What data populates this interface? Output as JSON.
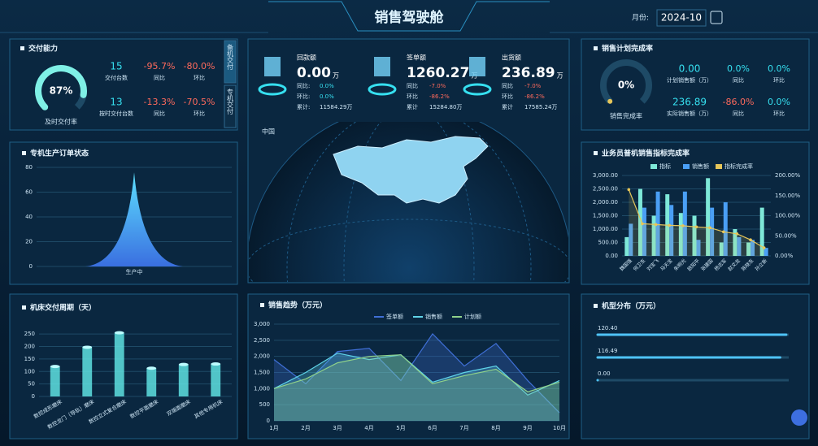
{
  "header": {
    "title": "销售驾驶舱",
    "month_label": "月份:",
    "month": "2024-10"
  },
  "delivery": {
    "title": "交付能力",
    "tabs": [
      "备机交付",
      "专机交付"
    ],
    "gauge": {
      "value": 87,
      "label": "87%",
      "lim": [
        0,
        100
      ]
    },
    "gauge_caption": "及时交付率",
    "rows": [
      {
        "value": "15",
        "label": "交付台数",
        "yoy": "-95.7%",
        "yoy_label": "同比",
        "mom": "-80.0%",
        "mom_label": "环比"
      },
      {
        "value": "13",
        "label": "按时交付台数",
        "yoy": "-13.3%",
        "yoy_label": "同比",
        "mom": "-70.5%",
        "mom_label": "环比"
      }
    ]
  },
  "kpis": {
    "map_label": "中国",
    "items": [
      {
        "name": "回款额",
        "value": "0.00",
        "unit": "万",
        "yoy_label": "同比:",
        "yoy": "0.0%",
        "mom_label": "环比:",
        "mom": "0.0%",
        "total_label": "累计:",
        "total": "11584.29万"
      },
      {
        "name": "签单额",
        "value": "1260.27",
        "unit": "万",
        "yoy_label": "同比",
        "yoy": "-7.0%",
        "mom_label": "环比",
        "mom": "-86.2%",
        "total_label": "累计",
        "total": "15284.80万"
      },
      {
        "name": "出货额",
        "value": "236.89",
        "unit": "万",
        "yoy_label": "同比",
        "yoy": "-7.0%",
        "mom_label": "环比",
        "mom": "-86.2%",
        "total_label": "累计",
        "total": "17585.24万"
      }
    ]
  },
  "plan": {
    "title": "销售计划完成率",
    "gauge": {
      "value": 0,
      "label": "0%",
      "lim": [
        0,
        100
      ]
    },
    "gauge_caption": "销售完成率",
    "rows": [
      {
        "value": "0.00",
        "label": "计划销售额（万）",
        "yoy": "0.0%",
        "yoy_label": "同比",
        "mom": "0.0%",
        "mom_label": "环比"
      },
      {
        "value": "236.89",
        "label": "实际销售额（万）",
        "yoy": "-86.0%",
        "yoy_label": "同比",
        "mom": "0.0%",
        "mom_label": "环比"
      }
    ]
  },
  "chart_data": [
    {
      "type": "pictorial-bar",
      "title": "专机生产订单状态",
      "categories": [
        "生产中"
      ],
      "values": [
        76
      ],
      "ylim": [
        0,
        80
      ],
      "yticks": [
        0,
        20,
        40,
        60,
        80
      ],
      "color": "#4fb3f0",
      "grid": true
    },
    {
      "type": "bar-line",
      "title": "业务员普机销售指标完成率",
      "categories": [
        "魏国强",
        "何卫东",
        "刘宝飞",
        "马天宝",
        "朱明光",
        "欧阳平",
        "张建国",
        "杨志军",
        "赵文龙",
        "陈晓东",
        "孙立新"
      ],
      "series": [
        {
          "name": "指标",
          "color": "#7ee8d8",
          "values": [
            700,
            2500,
            1500,
            2300,
            1600,
            1500,
            2900,
            500,
            1000,
            500,
            1800
          ]
        },
        {
          "name": "销售额",
          "color": "#4a9ff5",
          "values": [
            1200,
            1800,
            2400,
            1900,
            2400,
            600,
            1800,
            2000,
            700,
            600,
            300
          ]
        },
        {
          "name": "指标完成率",
          "color": "#e6c65a",
          "axis": "y2",
          "values": [
            165,
            80,
            78,
            76,
            75,
            72,
            70,
            60,
            55,
            40,
            20
          ]
        }
      ],
      "ylim": [
        0,
        3000
      ],
      "yticks": [
        {
          "value": 0,
          "label": "0.00"
        },
        {
          "value": 500,
          "label": "500.00"
        },
        {
          "value": 1000,
          "label": "1,000.00"
        },
        {
          "value": 1500,
          "label": "1,500.00"
        },
        {
          "value": 2000,
          "label": "2,000.00"
        },
        {
          "value": 2500,
          "label": "2,500.00"
        },
        {
          "value": 3000,
          "label": "3,000.00"
        }
      ],
      "y2lim": [
        0,
        200
      ],
      "y2ticks": [
        {
          "value": 0,
          "label": "0.00%"
        },
        {
          "value": 50,
          "label": "50.00%"
        },
        {
          "value": 100,
          "label": "100.00%"
        },
        {
          "value": 150,
          "label": "150.00%"
        },
        {
          "value": 200,
          "label": "200.00%"
        }
      ],
      "grid": true
    },
    {
      "type": "bar",
      "title": "机床交付周期（天）",
      "categories": [
        "数控成形磨床",
        "数控龙门（导轨）磨床",
        "数控立式复合磨床",
        "数控平面磨床",
        "双端面磨床",
        "其他专用机床"
      ],
      "values": [
        120,
        197,
        255,
        113,
        128,
        130
      ],
      "ylim": [
        0,
        270
      ],
      "yticks": [
        0,
        50,
        100,
        150,
        200,
        250
      ],
      "color": "#5ee0e0",
      "grid": true
    },
    {
      "type": "area-line",
      "title": "销售趋势（万元）",
      "categories": [
        "1月",
        "2月",
        "3月",
        "4月",
        "5月",
        "6月",
        "7月",
        "8月",
        "9月",
        "10月"
      ],
      "series": [
        {
          "name": "签单额",
          "color": "#3f6fd6",
          "values": [
            1900,
            1150,
            2150,
            2250,
            1250,
            2700,
            1700,
            2400,
            1250,
            250
          ]
        },
        {
          "name": "销售额",
          "color": "#5fd3e8",
          "values": [
            1000,
            1500,
            2100,
            1900,
            2050,
            1200,
            1500,
            1700,
            800,
            1250
          ]
        },
        {
          "name": "计划额",
          "color": "#8fd18a",
          "values": [
            1000,
            1300,
            1800,
            2000,
            2050,
            1150,
            1400,
            1600,
            900,
            1200
          ]
        }
      ],
      "ylim": [
        0,
        3000
      ],
      "yticks": [
        0,
        500,
        {
          "value": 1000,
          "label": "1,000"
        },
        {
          "value": 1500,
          "label": "1,500"
        },
        {
          "value": 2000,
          "label": "2,000"
        },
        {
          "value": 2500,
          "label": "2,500"
        },
        {
          "value": 3000,
          "label": "3,000"
        }
      ],
      "grid": true
    },
    {
      "type": "hbar",
      "title": "机型分布（万元）",
      "values": [
        120.4,
        116.49,
        0
      ],
      "value_labels": [
        "120.40",
        "116.49",
        "0.00"
      ],
      "xlim": [
        0,
        122
      ],
      "color": "#4fc3f7"
    }
  ]
}
